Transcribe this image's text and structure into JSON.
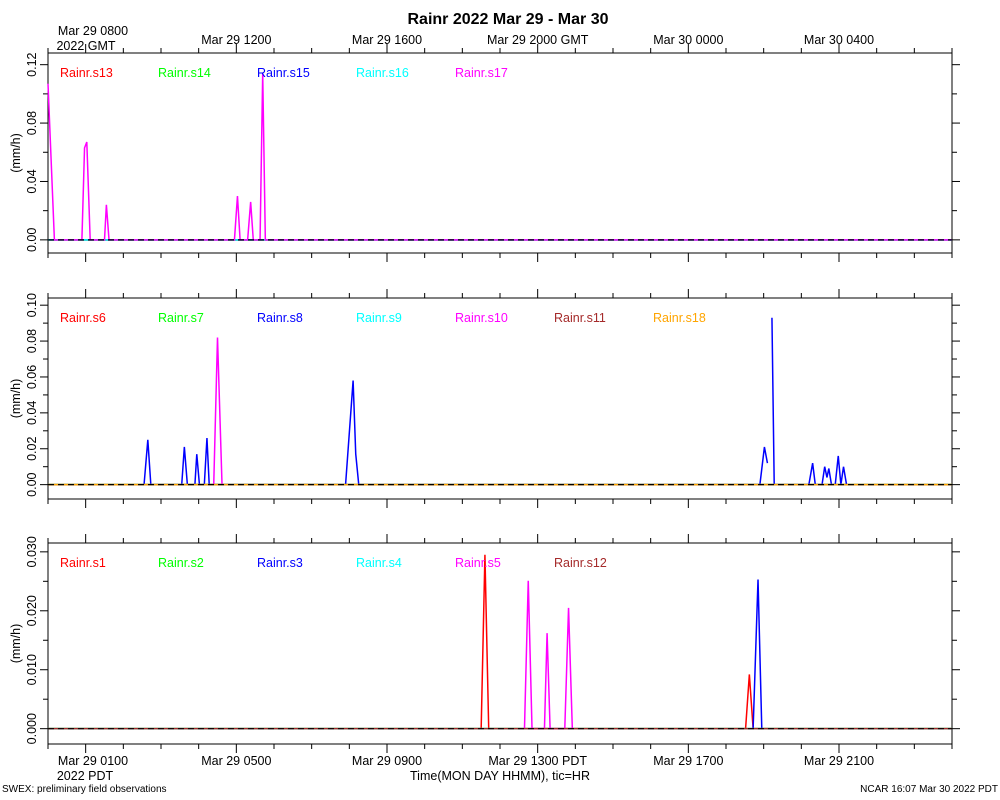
{
  "title": "Rainr 2022 Mar 29 - Mar 30",
  "top_axis": {
    "first_label_line1": "Mar 29 0800",
    "first_label_line2": "2022 GMT",
    "labels": [
      {
        "hour": 4,
        "text": "Mar 29 1200"
      },
      {
        "hour": 8,
        "text": "Mar 29 1600"
      },
      {
        "hour": 12,
        "text": "Mar 29 2000 GMT"
      },
      {
        "hour": 16,
        "text": "Mar 30 0000"
      },
      {
        "hour": 20,
        "text": "Mar 30 0400"
      }
    ]
  },
  "bottom_axis": {
    "first_label_line1": "Mar 29 0100",
    "first_label_line2": "2022 PDT",
    "labels": [
      {
        "hour": 4,
        "text": "Mar 29 0500"
      },
      {
        "hour": 8,
        "text": "Mar 29 0900"
      },
      {
        "hour": 12,
        "text": "Mar 29 1300 PDT"
      },
      {
        "hour": 16,
        "text": "Mar 29 1700"
      },
      {
        "hour": 20,
        "text": "Mar 29 2100"
      }
    ],
    "xlabel": "Time(MON DAY HHMM), tic=HR"
  },
  "footer": {
    "left": "SWEX: preliminary field observations",
    "right": "NCAR 16:07 Mar 30 2022 PDT"
  },
  "chart_data": [
    {
      "type": "line",
      "ylabel": "(mm/h)",
      "xlim": [
        -1,
        23
      ],
      "ylim": [
        -0.009,
        0.128
      ],
      "yticks": [
        0.0,
        0.04,
        0.08,
        0.12
      ],
      "ytick_labels": [
        "0.00",
        "0.04",
        "0.08",
        "0.12"
      ],
      "series": [
        {
          "name": "Rainr.s13",
          "color": "#ff0000",
          "points": [
            [
              -1,
              0
            ],
            [
              23,
              0
            ]
          ]
        },
        {
          "name": "Rainr.s14",
          "color": "#00ff00",
          "points": [
            [
              -1,
              0
            ],
            [
              23,
              0
            ]
          ]
        },
        {
          "name": "Rainr.s15",
          "color": "#0000ff",
          "points": [
            [
              -1,
              0
            ],
            [
              23,
              0
            ]
          ]
        },
        {
          "name": "Rainr.s16",
          "color": "#00ffff",
          "points": [
            [
              -1,
              0
            ],
            [
              23,
              0
            ]
          ]
        },
        {
          "name": "Rainr.s17",
          "color": "#ff00ff",
          "points": [
            [
              -1,
              0.107
            ],
            [
              -0.83,
              0
            ],
            [
              -0.1,
              0
            ],
            [
              -0.03,
              0.063
            ],
            [
              0.03,
              0.067
            ],
            [
              0.12,
              0
            ],
            [
              0.5,
              0
            ],
            [
              0.55,
              0.024
            ],
            [
              0.62,
              0
            ],
            [
              3.95,
              0
            ],
            [
              4.03,
              0.03
            ],
            [
              4.1,
              0
            ],
            [
              4.3,
              0
            ],
            [
              4.38,
              0.026
            ],
            [
              4.45,
              0
            ],
            [
              4.63,
              0
            ],
            [
              4.7,
              0.114
            ],
            [
              4.77,
              0
            ],
            [
              23,
              0
            ]
          ]
        }
      ]
    },
    {
      "type": "line",
      "ylabel": "(mm/h)",
      "xlim": [
        -1,
        23
      ],
      "ylim": [
        -0.008,
        0.104
      ],
      "yticks": [
        0.0,
        0.02,
        0.04,
        0.06,
        0.08,
        0.1
      ],
      "ytick_labels": [
        "0.00",
        "0.02",
        "0.04",
        "0.06",
        "0.08",
        "0.10"
      ],
      "series": [
        {
          "name": "Rainr.s6",
          "color": "#ff0000",
          "points": [
            [
              -1,
              0
            ],
            [
              23,
              0
            ]
          ]
        },
        {
          "name": "Rainr.s7",
          "color": "#00ff00",
          "points": [
            [
              -1,
              0
            ],
            [
              23,
              0
            ]
          ]
        },
        {
          "name": "Rainr.s8",
          "color": "#0000ff",
          "points": [
            [
              1.55,
              0
            ],
            [
              1.65,
              0.025
            ],
            [
              1.73,
              0
            ],
            [
              2.55,
              0
            ],
            [
              2.62,
              0.021
            ],
            [
              2.7,
              0
            ],
            [
              2.9,
              0
            ],
            [
              2.95,
              0.017
            ],
            [
              3.02,
              0
            ],
            [
              3.15,
              0
            ],
            [
              3.22,
              0.026
            ],
            [
              3.28,
              0
            ],
            [
              6.9,
              0
            ],
            [
              7.1,
              0.058
            ],
            [
              7.17,
              0.017
            ],
            [
              7.25,
              0
            ],
            [
              17.9,
              0
            ],
            [
              18.02,
              0.021
            ],
            [
              18.1,
              0.012
            ],
            null,
            [
              18.22,
              0.093
            ],
            [
              18.28,
              0
            ],
            [
              19.2,
              0
            ],
            [
              19.3,
              0.012
            ],
            [
              19.37,
              0
            ],
            [
              19.55,
              0
            ],
            [
              19.62,
              0.01
            ],
            [
              19.68,
              0.004
            ],
            [
              19.73,
              0.009
            ],
            [
              19.8,
              0
            ],
            [
              19.9,
              0
            ],
            [
              19.98,
              0.016
            ],
            [
              20.05,
              0
            ],
            [
              20.12,
              0.01
            ],
            [
              20.2,
              0
            ]
          ]
        },
        {
          "name": "Rainr.s9",
          "color": "#00ffff",
          "points": [
            [
              -1,
              0
            ],
            [
              23,
              0
            ]
          ]
        },
        {
          "name": "Rainr.s10",
          "color": "#ff00ff",
          "points": [
            [
              3.4,
              0
            ],
            [
              3.5,
              0.082
            ],
            [
              3.62,
              0
            ]
          ]
        },
        {
          "name": "Rainr.s11",
          "color": "#a52a2a",
          "points": [
            [
              -1,
              0
            ],
            [
              23,
              0
            ]
          ]
        },
        {
          "name": "Rainr.s18",
          "color": "#ffa500",
          "points": [
            [
              -1,
              0
            ],
            [
              23,
              0
            ]
          ]
        }
      ]
    },
    {
      "type": "line",
      "ylabel": "(mm/h)",
      "xlim": [
        -1,
        23
      ],
      "ylim": [
        -0.0026,
        0.0315
      ],
      "yticks": [
        0.0,
        0.01,
        0.02,
        0.03
      ],
      "ytick_labels": [
        "0.000",
        "0.010",
        "0.020",
        "0.030"
      ],
      "series": [
        {
          "name": "Rainr.s1",
          "color": "#ff0000",
          "points": [
            [
              -1,
              0
            ],
            [
              10.5,
              0
            ],
            [
              10.6,
              0.0295
            ],
            [
              10.7,
              0
            ],
            [
              17.52,
              0
            ],
            [
              17.62,
              0.0092
            ],
            [
              17.72,
              0
            ],
            [
              23,
              0
            ]
          ]
        },
        {
          "name": "Rainr.s2",
          "color": "#00ff00",
          "points": [
            [
              -1,
              0
            ],
            [
              23,
              0
            ]
          ]
        },
        {
          "name": "Rainr.s3",
          "color": "#0000ff",
          "points": [
            [
              17.72,
              0
            ],
            [
              17.85,
              0.0253
            ],
            [
              17.95,
              0
            ]
          ]
        },
        {
          "name": "Rainr.s4",
          "color": "#00ffff",
          "points": [
            [
              -1,
              0
            ],
            [
              23,
              0
            ]
          ]
        },
        {
          "name": "Rainr.s5",
          "color": "#ff00ff",
          "points": [
            [
              11.65,
              0
            ],
            [
              11.75,
              0.0251
            ],
            [
              11.85,
              0
            ],
            [
              12.18,
              0
            ],
            [
              12.25,
              0.0162
            ],
            [
              12.33,
              0
            ],
            [
              12.72,
              0
            ],
            [
              12.82,
              0.0205
            ],
            [
              12.92,
              0
            ]
          ]
        },
        {
          "name": "Rainr.s12",
          "color": "#a52a2a",
          "points": [
            [
              -1,
              0
            ],
            [
              23,
              0
            ]
          ]
        }
      ]
    }
  ]
}
